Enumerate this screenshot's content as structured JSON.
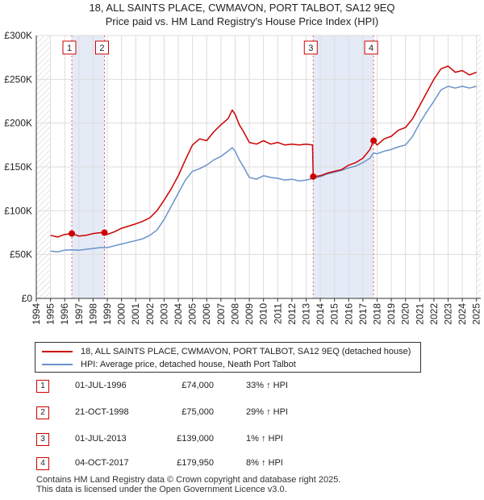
{
  "title_line1": "18, ALL SAINTS PLACE, CWMAVON, PORT TALBOT, SA12 9EQ",
  "title_line2": "Price paid vs. HM Land Registry's House Price Index (HPI)",
  "chart_data": {
    "type": "line",
    "x_range": [
      1994.0,
      2025.3
    ],
    "ylim": [
      0,
      300000
    ],
    "y_ticks": [
      0,
      50000,
      100000,
      150000,
      200000,
      250000,
      300000
    ],
    "y_tick_labels": [
      "£0",
      "£50K",
      "£100K",
      "£150K",
      "£200K",
      "£250K",
      "£300K"
    ],
    "x_ticks": [
      1994,
      1995,
      1996,
      1997,
      1998,
      1999,
      2000,
      2001,
      2002,
      2003,
      2004,
      2005,
      2006,
      2007,
      2008,
      2009,
      2010,
      2011,
      2012,
      2013,
      2014,
      2015,
      2016,
      2017,
      2018,
      2019,
      2020,
      2021,
      2022,
      2023,
      2024,
      2025
    ],
    "x_tick_labels": [
      "1994",
      "1995",
      "1996",
      "1997",
      "1998",
      "1999",
      "2000",
      "2001",
      "2002",
      "2003",
      "2004",
      "2005",
      "2006",
      "2007",
      "2008",
      "2009",
      "2010",
      "2011",
      "2012",
      "2013",
      "2014",
      "2015",
      "2016",
      "2017",
      "2018",
      "2019",
      "2020",
      "2021",
      "2022",
      "2023",
      "2024",
      "2025"
    ],
    "grid": true,
    "colors": {
      "property": "#cc0000",
      "hpi": "#6a93c8",
      "shade": "#dde6f5",
      "marker": "#cc0000"
    },
    "series": [
      {
        "name": "18, ALL SAINTS PLACE, CWMAVON, PORT TALBOT, SA12 9EQ (detached house)",
        "points": [
          [
            1995.0,
            72000
          ],
          [
            1995.5,
            70000
          ],
          [
            1996.0,
            73000
          ],
          [
            1996.5,
            74000
          ],
          [
            1997.0,
            71000
          ],
          [
            1997.5,
            72000
          ],
          [
            1998.0,
            74000
          ],
          [
            1998.5,
            75000
          ],
          [
            1998.8,
            75000
          ],
          [
            1999.0,
            73000
          ],
          [
            1999.5,
            76000
          ],
          [
            2000.0,
            80000
          ],
          [
            2001.0,
            85000
          ],
          [
            2001.5,
            88000
          ],
          [
            2002.0,
            92000
          ],
          [
            2002.5,
            100000
          ],
          [
            2003.0,
            112000
          ],
          [
            2003.5,
            125000
          ],
          [
            2004.0,
            140000
          ],
          [
            2004.5,
            158000
          ],
          [
            2005.0,
            175000
          ],
          [
            2005.5,
            182000
          ],
          [
            2006.0,
            180000
          ],
          [
            2006.5,
            190000
          ],
          [
            2007.0,
            198000
          ],
          [
            2007.5,
            205000
          ],
          [
            2007.8,
            215000
          ],
          [
            2008.0,
            210000
          ],
          [
            2008.3,
            198000
          ],
          [
            2008.6,
            190000
          ],
          [
            2009.0,
            178000
          ],
          [
            2009.5,
            176000
          ],
          [
            2010.0,
            180000
          ],
          [
            2010.5,
            176000
          ],
          [
            2011.0,
            178000
          ],
          [
            2011.5,
            175000
          ],
          [
            2012.0,
            176000
          ],
          [
            2012.5,
            175000
          ],
          [
            2013.0,
            176000
          ],
          [
            2013.45,
            175000
          ],
          [
            2013.5,
            139000
          ],
          [
            2014.0,
            140000
          ],
          [
            2014.5,
            143000
          ],
          [
            2015.0,
            145000
          ],
          [
            2015.5,
            147000
          ],
          [
            2016.0,
            152000
          ],
          [
            2016.5,
            155000
          ],
          [
            2017.0,
            160000
          ],
          [
            2017.5,
            170000
          ],
          [
            2017.75,
            179950
          ],
          [
            2018.0,
            175000
          ],
          [
            2018.5,
            182000
          ],
          [
            2019.0,
            185000
          ],
          [
            2019.5,
            192000
          ],
          [
            2020.0,
            195000
          ],
          [
            2020.5,
            205000
          ],
          [
            2021.0,
            220000
          ],
          [
            2021.5,
            235000
          ],
          [
            2022.0,
            250000
          ],
          [
            2022.5,
            262000
          ],
          [
            2023.0,
            265000
          ],
          [
            2023.5,
            258000
          ],
          [
            2024.0,
            260000
          ],
          [
            2024.5,
            255000
          ],
          [
            2025.0,
            258000
          ]
        ]
      },
      {
        "name": "HPI: Average price, detached house, Neath Port Talbot",
        "points": [
          [
            1995.0,
            54000
          ],
          [
            1995.5,
            53000
          ],
          [
            1996.0,
            55000
          ],
          [
            1996.5,
            55500
          ],
          [
            1997.0,
            55000
          ],
          [
            1997.5,
            56000
          ],
          [
            1998.0,
            57000
          ],
          [
            1998.5,
            58000
          ],
          [
            1999.0,
            58000
          ],
          [
            1999.5,
            60000
          ],
          [
            2000.0,
            62000
          ],
          [
            2001.0,
            66000
          ],
          [
            2001.5,
            68000
          ],
          [
            2002.0,
            72000
          ],
          [
            2002.5,
            78000
          ],
          [
            2003.0,
            90000
          ],
          [
            2003.5,
            105000
          ],
          [
            2004.0,
            120000
          ],
          [
            2004.5,
            135000
          ],
          [
            2005.0,
            145000
          ],
          [
            2005.5,
            148000
          ],
          [
            2006.0,
            152000
          ],
          [
            2006.5,
            158000
          ],
          [
            2007.0,
            162000
          ],
          [
            2007.5,
            168000
          ],
          [
            2007.8,
            172000
          ],
          [
            2008.0,
            168000
          ],
          [
            2008.3,
            158000
          ],
          [
            2008.6,
            150000
          ],
          [
            2009.0,
            138000
          ],
          [
            2009.5,
            136000
          ],
          [
            2010.0,
            140000
          ],
          [
            2010.5,
            138000
          ],
          [
            2011.0,
            137000
          ],
          [
            2011.5,
            135000
          ],
          [
            2012.0,
            136000
          ],
          [
            2012.5,
            134000
          ],
          [
            2013.0,
            135000
          ],
          [
            2013.5,
            137000
          ],
          [
            2014.0,
            139000
          ],
          [
            2014.5,
            142000
          ],
          [
            2015.0,
            144000
          ],
          [
            2015.5,
            146000
          ],
          [
            2016.0,
            149000
          ],
          [
            2016.5,
            151000
          ],
          [
            2017.0,
            155000
          ],
          [
            2017.5,
            160000
          ],
          [
            2017.75,
            166000
          ],
          [
            2018.0,
            165000
          ],
          [
            2018.5,
            168000
          ],
          [
            2019.0,
            170000
          ],
          [
            2019.5,
            173000
          ],
          [
            2020.0,
            175000
          ],
          [
            2020.5,
            185000
          ],
          [
            2021.0,
            200000
          ],
          [
            2021.5,
            213000
          ],
          [
            2022.0,
            225000
          ],
          [
            2022.5,
            238000
          ],
          [
            2023.0,
            242000
          ],
          [
            2023.5,
            240000
          ],
          [
            2024.0,
            242000
          ],
          [
            2024.5,
            240000
          ],
          [
            2025.0,
            242000
          ]
        ]
      }
    ],
    "shaded_ranges": [
      [
        1996.5,
        1998.8
      ],
      [
        2013.5,
        2017.75
      ]
    ],
    "sales": [
      {
        "num": "1",
        "x": 1996.5,
        "y": 74000,
        "date": "01-JUL-1996",
        "price": "£74,000",
        "hpi": "33% ↑ HPI"
      },
      {
        "num": "2",
        "x": 1998.8,
        "y": 75000,
        "date": "21-OCT-1998",
        "price": "£75,000",
        "hpi": "29% ↑ HPI"
      },
      {
        "num": "3",
        "x": 2013.5,
        "y": 139000,
        "date": "01-JUL-2013",
        "price": "£139,000",
        "hpi": "1% ↑ HPI"
      },
      {
        "num": "4",
        "x": 2017.75,
        "y": 179950,
        "date": "04-OCT-2017",
        "price": "£179,950",
        "hpi": "8% ↑ HPI"
      }
    ]
  },
  "legend": {
    "property_label": "18, ALL SAINTS PLACE, CWMAVON, PORT TALBOT, SA12 9EQ (detached house)",
    "hpi_label": "HPI: Average price, detached house, Neath Port Talbot"
  },
  "footer": {
    "line1": "Contains HM Land Registry data © Crown copyright and database right 2025.",
    "line2": "This data is licensed under the Open Government Licence v3.0."
  }
}
